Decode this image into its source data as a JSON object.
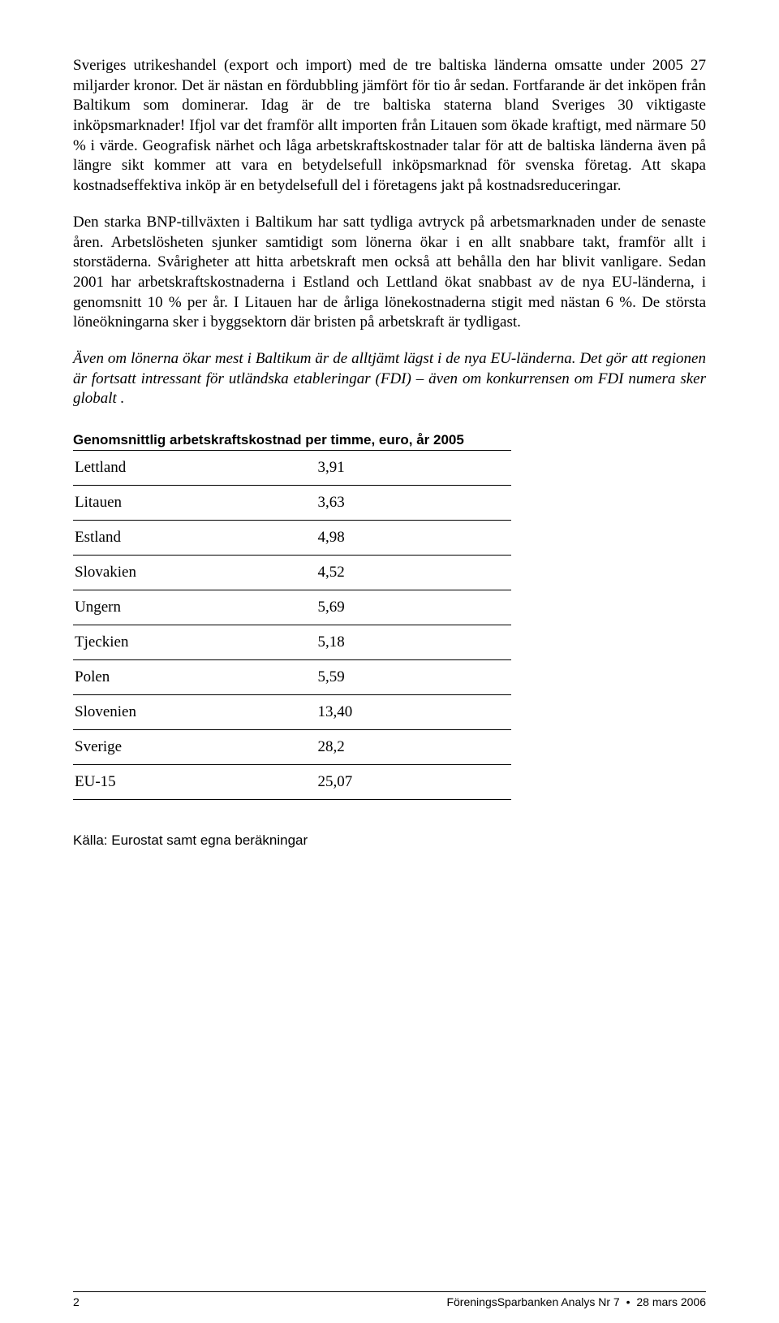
{
  "paragraphs": {
    "p1": "Sveriges utrikeshandel (export och import) med de tre baltiska länderna omsatte under 2005 27 miljarder kronor. Det är nästan en fördubbling jämfört för tio år sedan. Fortfarande är det inköpen från Baltikum som dominerar. Idag är de tre baltiska staterna bland Sveriges 30 viktigaste inköpsmarknader! Ifjol var det framför allt importen från Litauen som ökade kraftigt, med närmare 50 % i värde. Geografisk närhet och låga arbetskraftskostnader talar för att de baltiska länderna även på längre sikt kommer att vara en betydelsefull inköpsmarknad för svenska företag. Att skapa kostnadseffektiva inköp är en betydelsefull del i företagens jakt på kostnadsreduceringar.",
    "p2": "Den starka BNP-tillväxten i Baltikum har satt tydliga avtryck på arbetsmarknaden under de senaste åren. Arbetslösheten sjunker samtidigt som lönerna ökar i en allt snabbare takt, framför allt i storstäderna. Svårigheter att hitta arbetskraft men också att behålla den har blivit vanligare. Sedan 2001 har arbetskraftskostnaderna i Estland och Lettland ökat snabbast av de nya EU-länderna, i genomsnitt 10 % per år. I Litauen har de årliga lönekostnaderna stigit med nästan 6 %. De största löneökningarna sker i byggsektorn där bristen på arbetskraft är tydligast.",
    "p3": "Även om lönerna ökar mest i Baltikum är de alltjämt lägst i de nya EU-länderna. Det gör att regionen är fortsatt intressant för utländska etableringar (FDI) – även om konkurrensen om FDI numera sker globalt ."
  },
  "table": {
    "title": "Genomsnittlig arbetskraftskostnad per timme, euro, år 2005",
    "rows": [
      {
        "country": "Lettland",
        "value": "3,91"
      },
      {
        "country": "Litauen",
        "value": "3,63"
      },
      {
        "country": "Estland",
        "value": "4,98"
      },
      {
        "country": "Slovakien",
        "value": "4,52"
      },
      {
        "country": "Ungern",
        "value": "5,69"
      },
      {
        "country": "Tjeckien",
        "value": "5,18"
      },
      {
        "country": "Polen",
        "value": "5,59"
      },
      {
        "country": "Slovenien",
        "value": "13,40"
      },
      {
        "country": "Sverige",
        "value": "28,2"
      },
      {
        "country": "EU-15",
        "value": "25,07"
      }
    ],
    "source": "Källa: Eurostat samt egna beräkningar"
  },
  "footer": {
    "page": "2",
    "publication": "FöreningsSparbanken Analys Nr 7",
    "date": "28 mars 2006"
  }
}
